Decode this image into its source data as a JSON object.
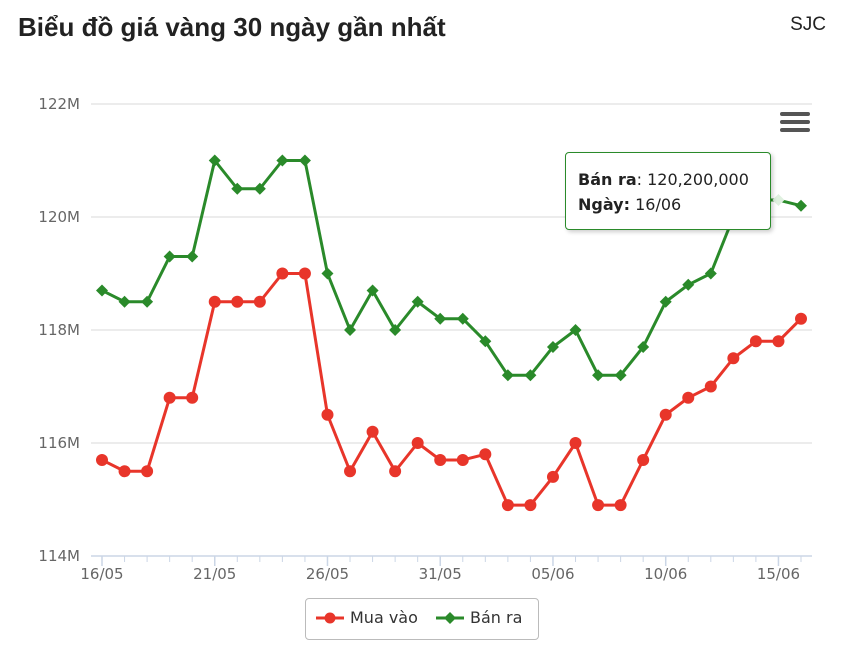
{
  "header": {
    "title": "Biểu đồ giá vàng 30 ngày gần nhất",
    "brand": "SJC"
  },
  "tooltip": {
    "label_series": "Bán ra",
    "value": "120,200,000",
    "label_date": "Ngày:",
    "date": "16/06"
  },
  "colors": {
    "buy": "#e8352a",
    "sell": "#2a8a2a",
    "grid": "#d8d8d8"
  },
  "chart_data": {
    "type": "line",
    "xlabel": "",
    "ylabel": "",
    "ylim": [
      114,
      122
    ],
    "y_tick_labels": [
      "114M",
      "116M",
      "118M",
      "120M",
      "122M"
    ],
    "y_ticks": [
      114,
      116,
      118,
      120,
      122
    ],
    "x_tick_labels": [
      "16/05",
      "21/05",
      "26/05",
      "31/05",
      "05/06",
      "10/06",
      "15/06"
    ],
    "x_tick_index": [
      0,
      5,
      10,
      15,
      20,
      25,
      30
    ],
    "categories": [
      "16/05",
      "17/05",
      "18/05",
      "19/05",
      "20/05",
      "21/05",
      "22/05",
      "23/05",
      "24/05",
      "25/05",
      "26/05",
      "27/05",
      "28/05",
      "29/05",
      "30/05",
      "31/05",
      "01/06",
      "02/06",
      "03/06",
      "04/06",
      "05/06",
      "06/06",
      "07/06",
      "08/06",
      "09/06",
      "10/06",
      "11/06",
      "12/06",
      "13/06",
      "14/06",
      "15/06",
      "16/06"
    ],
    "series": [
      {
        "name": "Mua vào",
        "values": [
          115.7,
          115.5,
          115.5,
          116.8,
          116.8,
          118.5,
          118.5,
          118.5,
          119.0,
          119.0,
          116.5,
          115.5,
          116.2,
          115.5,
          116.0,
          115.7,
          115.7,
          115.8,
          114.9,
          114.9,
          115.4,
          116.0,
          114.9,
          114.9,
          115.7,
          116.5,
          116.8,
          117.0,
          117.5,
          117.8,
          117.8,
          118.2
        ]
      },
      {
        "name": "Bán ra",
        "values": [
          118.7,
          118.5,
          118.5,
          119.3,
          119.3,
          121.0,
          120.5,
          120.5,
          121.0,
          121.0,
          119.0,
          118.0,
          118.7,
          118.0,
          118.5,
          118.2,
          118.2,
          117.8,
          117.2,
          117.2,
          117.7,
          118.0,
          117.2,
          117.2,
          117.7,
          118.5,
          118.8,
          119.0,
          120.0,
          120.3,
          120.3,
          120.2
        ]
      }
    ],
    "legend_position": "bottom",
    "grid": true
  }
}
